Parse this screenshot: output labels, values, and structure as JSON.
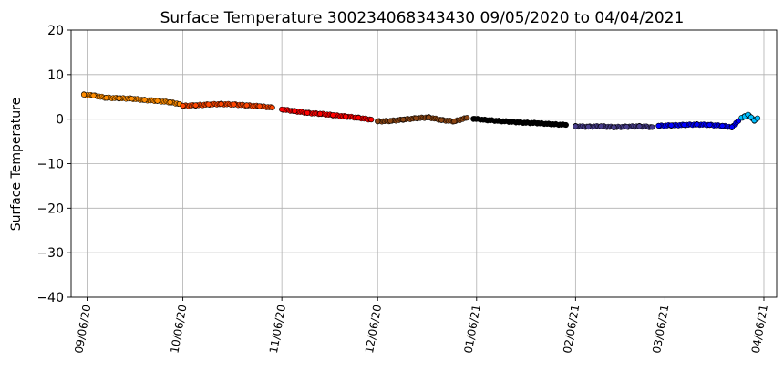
{
  "chart_data": {
    "type": "scatter",
    "title": "Surface Temperature 300234068343430  09/05/2020 to 04/04/2021",
    "xlabel": "",
    "ylabel": "Surface Temperature",
    "ylim": [
      -40,
      20
    ],
    "yticks": [
      20,
      10,
      0,
      -10,
      -20,
      -30,
      -40
    ],
    "yticklabels": [
      "20",
      "10",
      "0",
      "−10",
      "−20",
      "−30",
      "−40"
    ],
    "xlim": [
      "2020-09-01",
      "2021-04-10"
    ],
    "xticks": [
      "2020-09-06",
      "2020-10-06",
      "2020-11-06",
      "2020-12-06",
      "2021-01-06",
      "2021-02-06",
      "2021-03-06",
      "2021-04-06"
    ],
    "xticklabels": [
      "09/06/20",
      "10/06/20",
      "11/06/20",
      "12/06/20",
      "01/06/21",
      "02/06/21",
      "03/06/21",
      "04/06/21"
    ],
    "grid": true,
    "marker_edge_color": "#000000",
    "series": [
      {
        "color": "#ff8c00",
        "x": [
          "2020-09-05",
          "2020-09-08",
          "2020-09-12",
          "2020-09-16",
          "2020-09-20",
          "2020-09-24",
          "2020-09-28",
          "2020-10-02",
          "2020-10-05"
        ],
        "y": [
          5.5,
          5.3,
          4.8,
          4.7,
          4.6,
          4.3,
          4.1,
          3.8,
          3.4
        ]
      },
      {
        "color": "#ff4500",
        "x": [
          "2020-10-06",
          "2020-10-10",
          "2020-10-14",
          "2020-10-18",
          "2020-10-22",
          "2020-10-26",
          "2020-10-30",
          "2020-11-03"
        ],
        "y": [
          3.0,
          3.1,
          3.3,
          3.4,
          3.3,
          3.1,
          2.9,
          2.6
        ]
      },
      {
        "color": "#ff0000",
        "x": [
          "2020-11-06",
          "2020-11-10",
          "2020-11-14",
          "2020-11-18",
          "2020-11-22",
          "2020-11-26",
          "2020-11-30",
          "2020-12-04"
        ],
        "y": [
          2.2,
          1.8,
          1.4,
          1.2,
          0.9,
          0.6,
          0.3,
          -0.1
        ]
      },
      {
        "color": "#8b4513",
        "x": [
          "2020-12-06",
          "2020-12-10",
          "2020-12-14",
          "2020-12-18",
          "2020-12-22",
          "2020-12-26",
          "2020-12-30",
          "2021-01-03"
        ],
        "y": [
          -0.5,
          -0.4,
          -0.1,
          0.2,
          0.4,
          -0.2,
          -0.5,
          0.3
        ]
      },
      {
        "color": "#000000",
        "x": [
          "2021-01-05",
          "2021-01-09",
          "2021-01-13",
          "2021-01-17",
          "2021-01-21",
          "2021-01-25",
          "2021-01-29",
          "2021-02-03"
        ],
        "y": [
          0.1,
          -0.2,
          -0.4,
          -0.6,
          -0.8,
          -0.9,
          -1.1,
          -1.3
        ]
      },
      {
        "color": "#483d8b",
        "x": [
          "2021-02-06",
          "2021-02-10",
          "2021-02-14",
          "2021-02-18",
          "2021-02-22",
          "2021-02-26",
          "2021-03-02"
        ],
        "y": [
          -1.6,
          -1.7,
          -1.6,
          -1.8,
          -1.7,
          -1.6,
          -1.8
        ]
      },
      {
        "color": "#0000ff",
        "x": [
          "2021-03-04",
          "2021-03-08",
          "2021-03-12",
          "2021-03-16",
          "2021-03-20",
          "2021-03-24",
          "2021-03-27",
          "2021-03-29"
        ],
        "y": [
          -1.5,
          -1.4,
          -1.3,
          -1.2,
          -1.3,
          -1.5,
          -1.8,
          -0.4
        ]
      },
      {
        "color": "#00bfff",
        "x": [
          "2021-03-30",
          "2021-03-31",
          "2021-04-01",
          "2021-04-02",
          "2021-04-03",
          "2021-04-04"
        ],
        "y": [
          0.3,
          0.6,
          1.0,
          0.4,
          -0.3,
          0.2
        ]
      }
    ]
  }
}
